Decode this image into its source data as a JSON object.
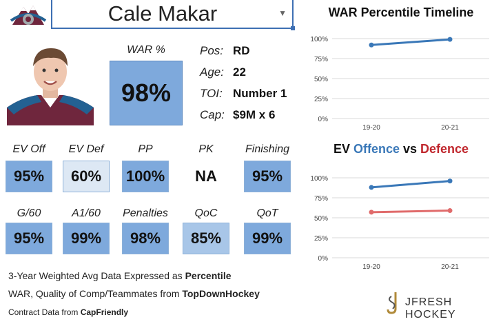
{
  "player": {
    "name": "Cale Makar"
  },
  "war": {
    "label": "WAR %",
    "value": "98%",
    "level_percent": 98
  },
  "info": [
    {
      "key": "Pos:",
      "value": "RD"
    },
    {
      "key": "Age:",
      "value": "22"
    },
    {
      "key": "TOI:",
      "value": "Number 1"
    },
    {
      "key": "Cap:",
      "value": "$9M x 6"
    }
  ],
  "stats": [
    {
      "label": "EV Off",
      "value": "95%",
      "fill": "#7ea9dc"
    },
    {
      "label": "EV Def",
      "value": "60%",
      "fill": "#dde8f4"
    },
    {
      "label": "PP",
      "value": "100%",
      "fill": "#7ea9dc"
    },
    {
      "label": "PK",
      "value": "NA",
      "fill": "transparent"
    },
    {
      "label": "Finishing",
      "value": "95%",
      "fill": "#7ea9dc"
    },
    {
      "label": "G/60",
      "value": "95%",
      "fill": "#7ea9dc"
    },
    {
      "label": "A1/60",
      "value": "99%",
      "fill": "#7ea9dc"
    },
    {
      "label": "Penalties",
      "value": "98%",
      "fill": "#7ea9dc"
    },
    {
      "label": "QoC",
      "value": "85%",
      "fill": "#a8c6e8"
    },
    {
      "label": "QoT",
      "value": "99%",
      "fill": "#7ea9dc"
    }
  ],
  "notes": {
    "line1_prefix": "3-Year Weighted Avg Data Expressed as ",
    "line1_bold": "Percentile",
    "line2_prefix": "WAR, Quality of Comp/Teammates from ",
    "line2_bold": "TopDownHockey",
    "line3_prefix": "Contract Data from ",
    "line3_bold": "CapFriendly"
  },
  "brand": {
    "name": "JFRESH HOCKEY"
  },
  "colors": {
    "accent_blue": "#3d6fb3",
    "tile_blue": "#7ea9dc",
    "offence": "#3a78b8",
    "defence": "#e06b6b",
    "defence_title": "#c0272d",
    "offence_title": "#3a78b8"
  },
  "chart_data": [
    {
      "type": "line",
      "title": "WAR Percentile Timeline",
      "categories": [
        "19-20",
        "20-21"
      ],
      "series": [
        {
          "values": [
            92,
            99
          ]
        }
      ],
      "ylim": [
        0,
        100
      ],
      "yticks": [
        "0%",
        "25%",
        "50%",
        "75%",
        "100%"
      ],
      "grid": true
    },
    {
      "type": "line",
      "title_parts": [
        "EV ",
        "Offence",
        " vs ",
        "Defence"
      ],
      "categories": [
        "19-20",
        "20-21"
      ],
      "series": [
        {
          "values": [
            88,
            96
          ]
        },
        {
          "values": [
            57,
            59
          ]
        }
      ],
      "ylim": [
        0,
        100
      ],
      "yticks": [
        "0%",
        "25%",
        "50%",
        "75%",
        "100%"
      ],
      "grid": true
    }
  ]
}
